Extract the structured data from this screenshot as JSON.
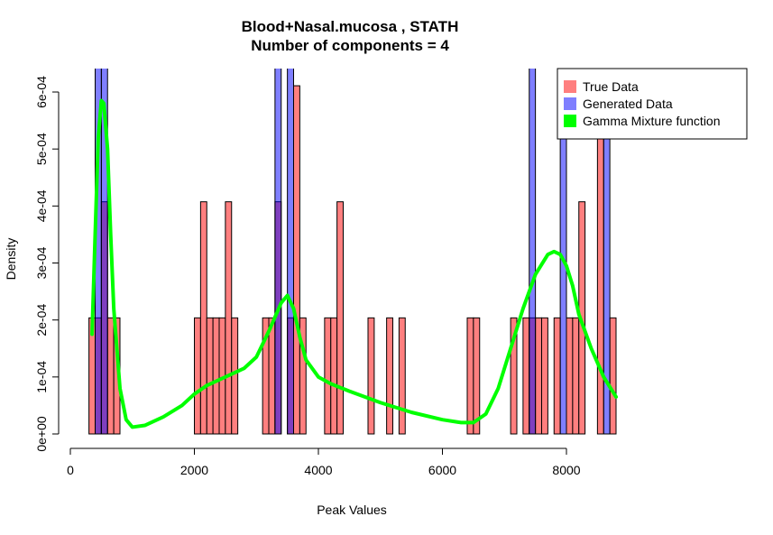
{
  "chart_data": {
    "type": "bar",
    "title": "Blood+Nasal.mucosa , STATH",
    "subtitle": "Number of components =  4",
    "xlabel": "Peak Values",
    "ylabel": "Density",
    "xlim": [
      0,
      9000
    ],
    "ylim": [
      0,
      0.00063
    ],
    "x_ticks": [
      0,
      2000,
      4000,
      6000,
      8000
    ],
    "x_tick_labels": [
      "0",
      "2000",
      "4000",
      "6000",
      "8000"
    ],
    "y_ticks": [
      0,
      0.0001,
      0.0002,
      0.0003,
      0.0004,
      0.0005,
      0.0006
    ],
    "y_tick_labels": [
      "0e+00",
      "1e-04",
      "2e-04",
      "3e-04",
      "4e-04",
      "5e-04",
      "6e-04"
    ],
    "grid": false,
    "legend_position": "top-right",
    "legend": [
      {
        "label": "True Data",
        "color": "#FF7F7F"
      },
      {
        "label": "Generated Data",
        "color": "#7F7FFF"
      },
      {
        "label": "Gamma Mixture function",
        "color": "#00FF00"
      }
    ],
    "bin_width": 100,
    "series": [
      {
        "name": "True Data",
        "color": "#FF7F7F",
        "bins": [
          {
            "x0": 300,
            "y": 0.0002037
          },
          {
            "x0": 400,
            "y": 0.0002037
          },
          {
            "x0": 500,
            "y": 0.0004074
          },
          {
            "x0": 600,
            "y": 0.0002037
          },
          {
            "x0": 700,
            "y": 0.0002037
          },
          {
            "x0": 2000,
            "y": 0.0002037
          },
          {
            "x0": 2100,
            "y": 0.0004074
          },
          {
            "x0": 2200,
            "y": 0.0002037
          },
          {
            "x0": 2300,
            "y": 0.0002037
          },
          {
            "x0": 2400,
            "y": 0.0002037
          },
          {
            "x0": 2500,
            "y": 0.0004074
          },
          {
            "x0": 2600,
            "y": 0.0002037
          },
          {
            "x0": 3100,
            "y": 0.0002037
          },
          {
            "x0": 3200,
            "y": 0.0002037
          },
          {
            "x0": 3300,
            "y": 0.0004074
          },
          {
            "x0": 3500,
            "y": 0.0002037
          },
          {
            "x0": 3600,
            "y": 0.000611
          },
          {
            "x0": 3700,
            "y": 0.0002037
          },
          {
            "x0": 4100,
            "y": 0.0002037
          },
          {
            "x0": 4200,
            "y": 0.0002037
          },
          {
            "x0": 4300,
            "y": 0.0004074
          },
          {
            "x0": 4800,
            "y": 0.0002037
          },
          {
            "x0": 5100,
            "y": 0.0002037
          },
          {
            "x0": 5300,
            "y": 0.0002037
          },
          {
            "x0": 6400,
            "y": 0.0002037
          },
          {
            "x0": 6500,
            "y": 0.0002037
          },
          {
            "x0": 7100,
            "y": 0.0002037
          },
          {
            "x0": 7300,
            "y": 0.0002037
          },
          {
            "x0": 7400,
            "y": 0.0002037
          },
          {
            "x0": 7500,
            "y": 0.0002037
          },
          {
            "x0": 7600,
            "y": 0.0002037
          },
          {
            "x0": 7800,
            "y": 0.0002037
          },
          {
            "x0": 8000,
            "y": 0.0002037
          },
          {
            "x0": 8100,
            "y": 0.0002037
          },
          {
            "x0": 8200,
            "y": 0.0004074
          },
          {
            "x0": 8500,
            "y": 0.000611
          },
          {
            "x0": 8700,
            "y": 0.0002037
          }
        ]
      },
      {
        "name": "Generated Data",
        "color": "#7F7FFF",
        "bins": [
          {
            "x0": 400,
            "y": 0.0012
          },
          {
            "x0": 500,
            "y": 0.0012
          },
          {
            "x0": 3300,
            "y": 0.0012
          },
          {
            "x0": 3500,
            "y": 0.0012
          },
          {
            "x0": 7400,
            "y": 0.0012
          },
          {
            "x0": 7900,
            "y": 0.0012
          },
          {
            "x0": 8600,
            "y": 0.0012
          }
        ]
      },
      {
        "name": "Gamma Mixture function",
        "color": "#00FF00",
        "type": "line",
        "x": [
          350,
          400,
          450,
          500,
          540,
          600,
          650,
          700,
          800,
          900,
          1000,
          1200,
          1500,
          1800,
          2000,
          2200,
          2500,
          2800,
          3000,
          3200,
          3400,
          3500,
          3600,
          3700,
          3800,
          4000,
          4200,
          4500,
          5000,
          5500,
          6000,
          6300,
          6500,
          6700,
          6900,
          7100,
          7300,
          7500,
          7700,
          7800,
          7900,
          8000,
          8100,
          8200,
          8400,
          8600,
          8800
        ],
        "y": [
          0.000175,
          0.00035,
          0.00052,
          0.000585,
          0.00058,
          0.0005,
          0.00035,
          0.00022,
          8e-05,
          2.5e-05,
          1.2e-05,
          1.5e-05,
          3e-05,
          5e-05,
          7e-05,
          8.5e-05,
          0.0001,
          0.000115,
          0.000135,
          0.00018,
          0.00023,
          0.000243,
          0.00022,
          0.00017,
          0.00013,
          0.0001,
          8.8e-05,
          7.5e-05,
          5.5e-05,
          3.8e-05,
          2.5e-05,
          2e-05,
          2e-05,
          3.5e-05,
          8e-05,
          0.00015,
          0.00022,
          0.00028,
          0.000315,
          0.00032,
          0.000315,
          0.000295,
          0.00026,
          0.00021,
          0.00015,
          0.0001,
          6.5e-05
        ]
      }
    ]
  }
}
